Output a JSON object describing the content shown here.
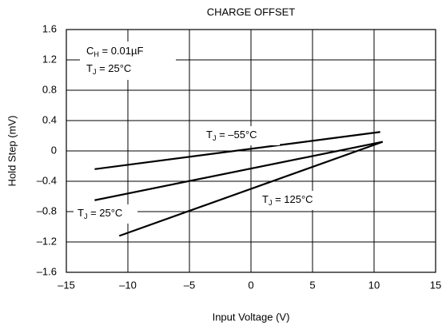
{
  "chart_data": {
    "type": "line",
    "title": "CHARGE OFFSET",
    "xlabel": "Input Voltage (V)",
    "ylabel": "Hold Step (mV)",
    "xlim": [
      -15,
      15
    ],
    "ylim": [
      -1.6,
      1.6
    ],
    "xticks": [
      {
        "value": -15,
        "label": "–15"
      },
      {
        "value": -10,
        "label": "–10"
      },
      {
        "value": -5,
        "label": "–5"
      },
      0,
      5,
      10,
      15
    ],
    "yticks": [
      {
        "value": -1.6,
        "label": "–1.6"
      },
      {
        "value": -1.2,
        "label": "–1.2"
      },
      {
        "value": -0.8,
        "label": "–0.8"
      },
      {
        "value": -0.4,
        "label": "–0.4"
      },
      0,
      0.4,
      0.8,
      1.2,
      1.6
    ],
    "grid": true,
    "series": [
      {
        "color": "#000000",
        "x": [
          -12.7,
          10.5
        ],
        "values": [
          -0.24,
          0.25
        ]
      },
      {
        "color": "#000000",
        "x": [
          -12.7,
          10.7
        ],
        "values": [
          -0.65,
          0.12
        ]
      },
      {
        "color": "#000000",
        "x": [
          -10.7,
          10.7
        ],
        "values": [
          -1.12,
          0.12
        ]
      }
    ],
    "annotations": [
      {
        "main": "C",
        "sub": "H",
        "rest": " = 0.01µF"
      },
      {
        "main": "T",
        "sub": "J",
        "rest": " = 25°C"
      },
      {
        "main": "T",
        "sub": "J",
        "rest": " = –55°C"
      },
      {
        "main": "T",
        "sub": "J",
        "rest": " = 125°C"
      },
      {
        "main": "T",
        "sub": "J",
        "rest": " = 25°C"
      }
    ]
  }
}
